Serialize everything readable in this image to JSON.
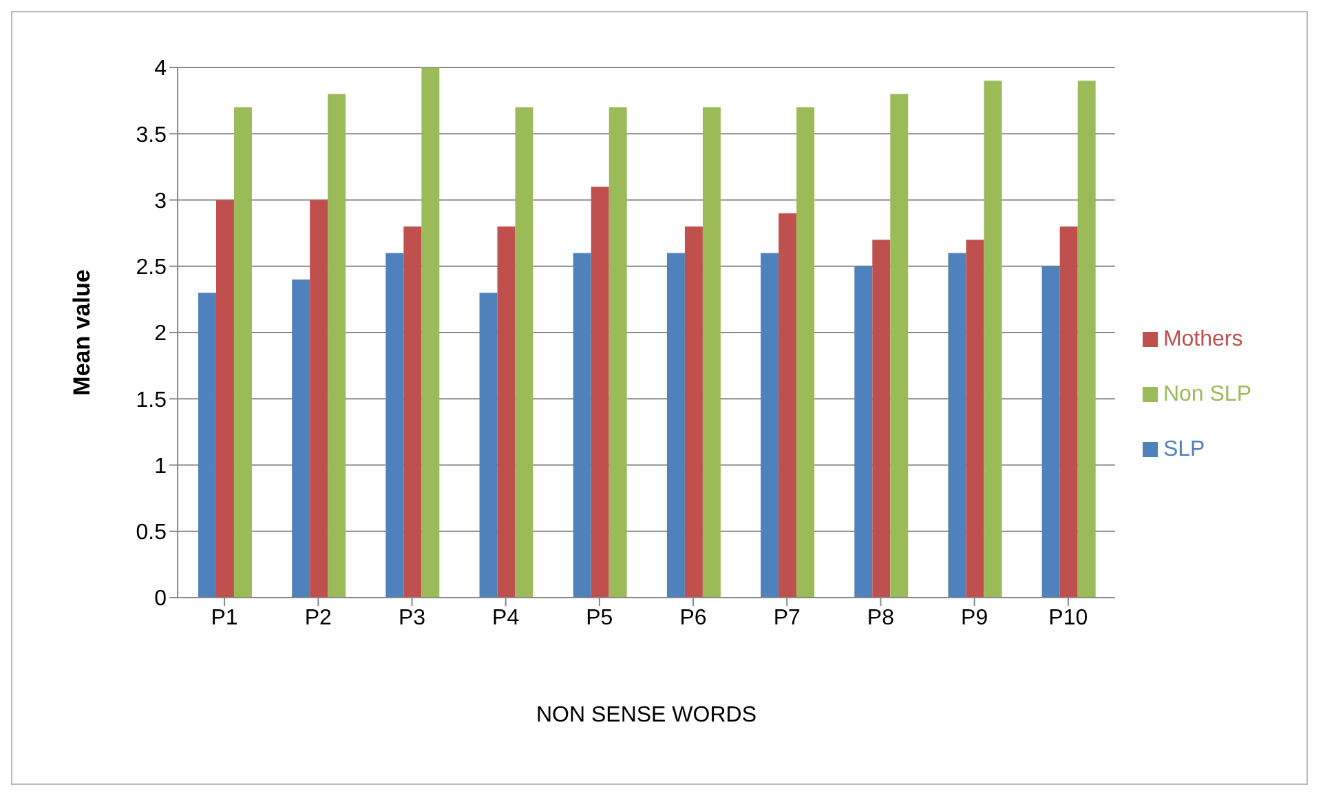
{
  "chart_data": {
    "type": "bar",
    "xlabel": "NON SENSE WORDS",
    "ylabel": "Mean value",
    "categories": [
      "P1",
      "P2",
      "P3",
      "P4",
      "P5",
      "P6",
      "P7",
      "P8",
      "P9",
      "P10"
    ],
    "series": [
      {
        "name": "SLP",
        "color": "#4f81bd",
        "values": [
          2.3,
          2.4,
          2.6,
          2.3,
          2.6,
          2.6,
          2.6,
          2.5,
          2.6,
          2.5
        ]
      },
      {
        "name": "Mothers",
        "color": "#c0504d",
        "values": [
          3.0,
          3.0,
          2.8,
          2.8,
          3.1,
          2.8,
          2.9,
          2.7,
          2.7,
          2.8
        ]
      },
      {
        "name": "Non SLP",
        "color": "#9bbb59",
        "values": [
          3.7,
          3.8,
          4.0,
          3.7,
          3.7,
          3.7,
          3.7,
          3.8,
          3.9,
          3.9
        ]
      }
    ],
    "ylim": [
      0,
      4
    ],
    "yticks": [
      0,
      0.5,
      1,
      1.5,
      2,
      2.5,
      3,
      3.5,
      4
    ],
    "grid": "y",
    "legend": "right"
  }
}
